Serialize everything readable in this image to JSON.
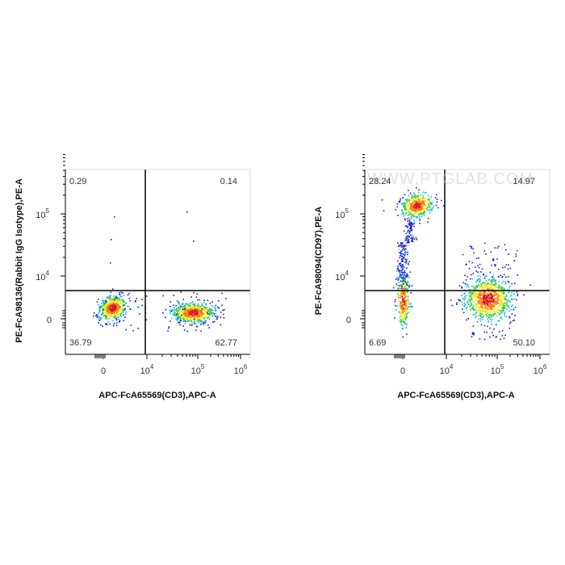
{
  "chart_data": [
    {
      "type": "scatter",
      "subtype": "flow-cytometry-density-dot-plot",
      "xlabel": "APC-FcA65569(CD3),APC-A",
      "ylabel": "PE-FcA98136(Rabbit IgG Isotype),PE-A",
      "x_ticks": [
        {
          "base": "0",
          "exp": ""
        },
        {
          "base": "10",
          "exp": "4"
        },
        {
          "base": "10",
          "exp": "5"
        },
        {
          "base": "10",
          "exp": "6"
        }
      ],
      "y_ticks": [
        {
          "base": "0",
          "exp": ""
        },
        {
          "base": "10",
          "exp": "4"
        },
        {
          "base": "10",
          "exp": "5"
        }
      ],
      "quadrants": {
        "upper_left": "0.29",
        "upper_right": "0.14",
        "lower_left": "36.79",
        "lower_right": "62.77"
      },
      "gate": {
        "x": 10000,
        "y": 5000
      },
      "populations": [
        {
          "x_center": 2500,
          "y_center": 200,
          "density": "high",
          "label": "CD3-negative"
        },
        {
          "x_center": 100000,
          "y_center": 100,
          "density": "high",
          "label": "CD3-positive"
        }
      ],
      "watermark": ""
    },
    {
      "type": "scatter",
      "subtype": "flow-cytometry-density-dot-plot",
      "xlabel": "APC-FcA65569(CD3),APC-A",
      "ylabel": "PE-FcA98094(CD97),PE-A",
      "x_ticks": [
        {
          "base": "0",
          "exp": ""
        },
        {
          "base": "10",
          "exp": "4"
        },
        {
          "base": "10",
          "exp": "5"
        },
        {
          "base": "10",
          "exp": "6"
        }
      ],
      "y_ticks": [
        {
          "base": "0",
          "exp": ""
        },
        {
          "base": "10",
          "exp": "4"
        },
        {
          "base": "10",
          "exp": "5"
        }
      ],
      "quadrants": {
        "upper_left": "28.24",
        "upper_right": "14.97",
        "lower_left": "6.69",
        "lower_right": "50.10"
      },
      "gate": {
        "x": 10000,
        "y": 5000
      },
      "populations": [
        {
          "x_center": 2500,
          "y_center": 130000,
          "density": "high",
          "label": "CD3-negative CD97-high"
        },
        {
          "x_center": 0,
          "y_center": 20000,
          "density": "low",
          "label": "CD3-negative CD97-intermediate"
        },
        {
          "x_center": 70000,
          "y_center": 200,
          "density": "high",
          "label": "CD3-positive"
        }
      ],
      "watermark": "WWW.PTGLAB.COM"
    }
  ],
  "colors": {
    "low": "#1a1ad6",
    "mid_low": "#18b8e8",
    "mid": "#2ecc40",
    "mid_high": "#f5e616",
    "high": "#f07d10",
    "peak": "#d81b1b"
  }
}
